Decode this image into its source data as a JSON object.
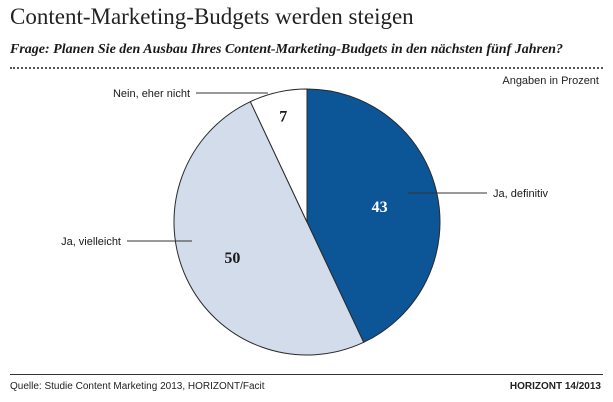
{
  "chart_data": {
    "type": "pie",
    "title": "Content-Marketing-Budgets werden steigen",
    "subtitle": "Frage: Planen Sie den Ausbau Ihres Content-Marketing-Budgets in den nächsten fünf Jahren?",
    "unit_note": "Angaben in Prozent",
    "slices": [
      {
        "label": "Ja, definitiv",
        "value": 43,
        "value_label": "43",
        "color": "#0c5597"
      },
      {
        "label": "Ja, vielleicht",
        "value": 50,
        "value_label": "50",
        "color": "#d3dcea"
      },
      {
        "label": "Nein, eher nicht",
        "value": 7,
        "value_label": "7",
        "color": "#ffffff"
      }
    ]
  },
  "footer": {
    "source": "Quelle: Studie Content Marketing 2013, HORIZONT/Facit",
    "brand": "HORIZONT 14/2013"
  }
}
